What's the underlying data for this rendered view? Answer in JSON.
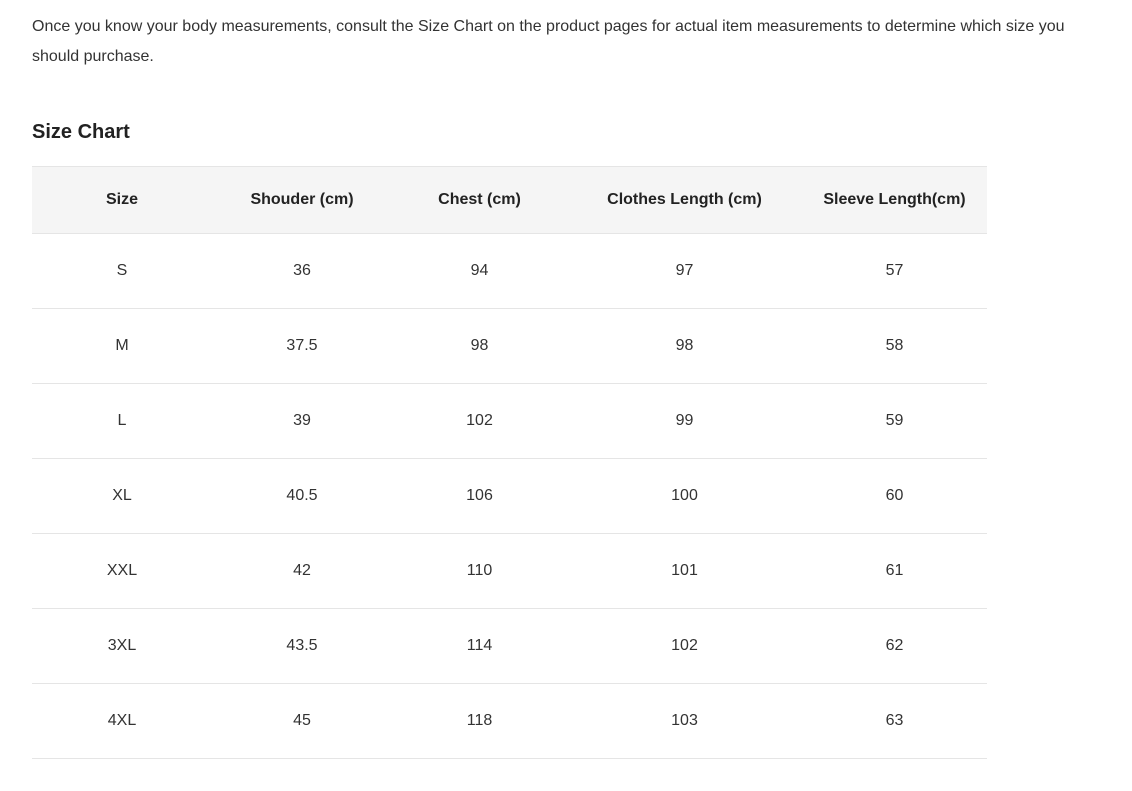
{
  "intro": "Once you know your body measurements, consult the Size Chart on the product pages for actual item measurements to determine which size you should purchase.",
  "title": "Size Chart",
  "table": {
    "columns": [
      "Size",
      "Shouder (cm)",
      "Chest (cm)",
      "Clothes Length (cm)",
      "Sleeve Length(cm)"
    ],
    "rows": [
      [
        "S",
        "36",
        "94",
        "97",
        "57"
      ],
      [
        "M",
        "37.5",
        "98",
        "98",
        "58"
      ],
      [
        "L",
        "39",
        "102",
        "99",
        "59"
      ],
      [
        "XL",
        "40.5",
        "106",
        "100",
        "60"
      ],
      [
        "XXL",
        "42",
        "110",
        "101",
        "61"
      ],
      [
        "3XL",
        "43.5",
        "114",
        "102",
        "62"
      ],
      [
        "4XL",
        "45",
        "118",
        "103",
        "63"
      ]
    ],
    "column_classes": [
      "col-size",
      "col-shoulder",
      "col-chest",
      "col-length",
      "col-sleeve"
    ],
    "header_bg": "#f5f5f5",
    "border_color": "#e5e5e5",
    "text_color": "#333333",
    "header_text_color": "#222222",
    "font_size": 16,
    "header_font_size": 16,
    "header_font_weight": "bold"
  }
}
